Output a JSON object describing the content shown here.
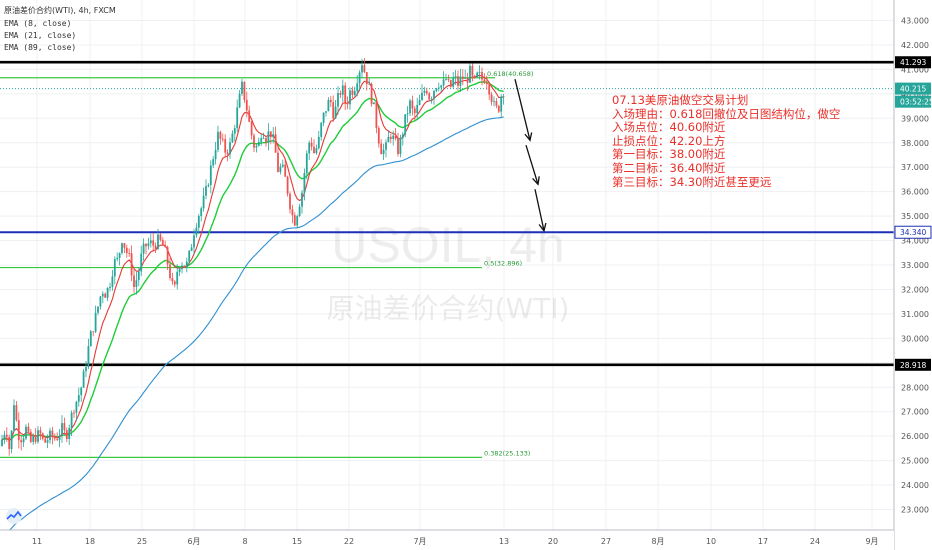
{
  "legend": {
    "symbol_line": "原油差价合约(WTI), 4h, FXCM",
    "ema1": "EMA (8, close)",
    "ema2": "EMA (21, close)",
    "ema3": "EMA (89, close)"
  },
  "watermark": {
    "ticker": "USOIL, 4h",
    "name": "原油差价合约(WTI)"
  },
  "plan": {
    "title": "07.13美原油做空交易计划",
    "reason": "入场理由：0.618回撤位及日图结构位，做空",
    "entry": "入场点位：40.60附近",
    "stop": "止损点位：42.20上方",
    "target1": "第一目标：38.00附近",
    "target2": "第二目标：36.40附近",
    "target3": "第三目标：34.30附近甚至更远"
  },
  "colors": {
    "up": "#26a69a",
    "down": "#ef5350",
    "ema8": "#e53935",
    "ema21": "#1fcc3a",
    "ema89": "#2f8fd0",
    "fib": "#3cc83c",
    "level_black": "#000000",
    "level_blue": "#1c2fb8",
    "plan_text": "#e8302a"
  },
  "chart_data": {
    "type": "candlestick",
    "y_axis": {
      "min": 22.5,
      "max": 43.5,
      "side": "right",
      "ticks": [
        23,
        24,
        25,
        26,
        27,
        28,
        29,
        30,
        31,
        32,
        33,
        34,
        35,
        36,
        37,
        38,
        39,
        40,
        41,
        42,
        43
      ],
      "tick_labels": [
        "23.000",
        "24.000",
        "25.000",
        "26.000",
        "27.000",
        "28.000",
        "29.000",
        "30.000",
        "31.000",
        "32.000",
        "33.000",
        "34.000",
        "35.000",
        "36.000",
        "37.000",
        "38.000",
        "39.000",
        "40.000",
        "41.000",
        "42.000",
        "43.000"
      ]
    },
    "x_axis": {
      "tick_labels": [
        "11",
        "18",
        "25",
        "6月",
        "8",
        "15",
        "22",
        "7月",
        "13",
        "20",
        "27",
        "8月",
        "10",
        "17",
        "24",
        "9月"
      ]
    },
    "price_labels": [
      {
        "text": "41.293",
        "value": 41.293,
        "style": "black"
      },
      {
        "text": "40.215",
        "value": 40.215,
        "style": "teal"
      },
      {
        "text": "03:52:25",
        "value": 39.68,
        "style": "teal"
      },
      {
        "text": "34.340",
        "value": 34.34,
        "style": "blue"
      },
      {
        "text": "28.918",
        "value": 28.918,
        "style": "black"
      }
    ],
    "horizontal_levels": [
      {
        "value": 41.293,
        "kind": "black"
      },
      {
        "value": 34.34,
        "kind": "blue"
      },
      {
        "value": 28.918,
        "kind": "black"
      }
    ],
    "fib_levels": [
      {
        "label": "0.618(40.658)",
        "value": 40.658
      },
      {
        "label": "0.5(32.896)",
        "value": 32.896
      },
      {
        "label": "0.382(25.133)",
        "value": 25.133
      }
    ],
    "current_price": 40.215,
    "price_path_approx": [
      [
        0,
        25.6
      ],
      [
        6,
        26.4
      ],
      [
        10,
        25.3
      ],
      [
        14,
        27.4
      ],
      [
        18,
        26.1
      ],
      [
        22,
        25.9
      ],
      [
        26,
        26.3
      ],
      [
        30,
        25.7
      ],
      [
        36,
        26.0
      ],
      [
        40,
        26.1
      ],
      [
        44,
        25.7
      ],
      [
        50,
        26.0
      ],
      [
        56,
        25.9
      ],
      [
        62,
        26.3
      ],
      [
        66,
        26.0
      ],
      [
        70,
        26.6
      ],
      [
        74,
        27.2
      ],
      [
        78,
        27.6
      ],
      [
        82,
        28.1
      ],
      [
        86,
        29.0
      ],
      [
        90,
        30.0
      ],
      [
        94,
        30.6
      ],
      [
        98,
        31.3
      ],
      [
        102,
        32.0
      ],
      [
        106,
        31.8
      ],
      [
        110,
        32.3
      ],
      [
        114,
        33.1
      ],
      [
        118,
        33.2
      ],
      [
        122,
        34.1
      ],
      [
        126,
        33.6
      ],
      [
        130,
        33.2
      ],
      [
        134,
        32.1
      ],
      [
        138,
        32.6
      ],
      [
        142,
        33.5
      ],
      [
        146,
        33.8
      ],
      [
        150,
        33.9
      ],
      [
        154,
        33.8
      ],
      [
        158,
        34.0
      ],
      [
        162,
        33.9
      ],
      [
        166,
        33.4
      ],
      [
        170,
        32.6
      ],
      [
        174,
        31.8
      ],
      [
        178,
        33.0
      ],
      [
        182,
        33.1
      ],
      [
        186,
        32.9
      ],
      [
        190,
        33.5
      ],
      [
        194,
        34.4
      ],
      [
        198,
        35.0
      ],
      [
        202,
        35.4
      ],
      [
        206,
        36.0
      ],
      [
        210,
        36.8
      ],
      [
        214,
        37.6
      ],
      [
        218,
        38.3
      ],
      [
        222,
        38.0
      ],
      [
        226,
        37.6
      ],
      [
        230,
        37.9
      ],
      [
        234,
        38.6
      ],
      [
        238,
        39.5
      ],
      [
        242,
        40.3
      ],
      [
        246,
        39.6
      ],
      [
        250,
        38.6
      ],
      [
        254,
        37.9
      ],
      [
        258,
        37.8
      ],
      [
        262,
        38.6
      ],
      [
        266,
        38.2
      ],
      [
        270,
        38.5
      ],
      [
        274,
        38.0
      ],
      [
        278,
        36.9
      ],
      [
        282,
        37.0
      ],
      [
        286,
        36.4
      ],
      [
        290,
        35.5
      ],
      [
        294,
        34.7
      ],
      [
        298,
        35.3
      ],
      [
        302,
        36.0
      ],
      [
        306,
        37.3
      ],
      [
        310,
        38.2
      ],
      [
        314,
        37.6
      ],
      [
        318,
        37.9
      ],
      [
        322,
        38.9
      ],
      [
        326,
        39.4
      ],
      [
        330,
        39.8
      ],
      [
        334,
        39.1
      ],
      [
        338,
        39.8
      ],
      [
        342,
        40.3
      ],
      [
        346,
        39.5
      ],
      [
        350,
        40.1
      ],
      [
        354,
        40.2
      ],
      [
        358,
        40.8
      ],
      [
        362,
        41.3
      ],
      [
        366,
        40.7
      ],
      [
        370,
        40.1
      ],
      [
        374,
        39.4
      ],
      [
        378,
        38.3
      ],
      [
        382,
        37.6
      ],
      [
        386,
        37.8
      ],
      [
        390,
        38.4
      ],
      [
        394,
        38.1
      ],
      [
        398,
        37.7
      ],
      [
        402,
        38.3
      ],
      [
        406,
        39.1
      ],
      [
        410,
        39.6
      ],
      [
        414,
        39.1
      ],
      [
        418,
        39.5
      ],
      [
        422,
        39.9
      ],
      [
        426,
        40.3
      ],
      [
        430,
        39.8
      ],
      [
        434,
        40.2
      ],
      [
        438,
        40.5
      ],
      [
        442,
        40.3
      ],
      [
        446,
        40.6
      ],
      [
        450,
        40.2
      ],
      [
        454,
        40.7
      ],
      [
        458,
        40.4
      ],
      [
        462,
        40.7
      ],
      [
        466,
        40.5
      ],
      [
        470,
        40.9
      ],
      [
        474,
        40.4
      ],
      [
        478,
        40.8
      ],
      [
        482,
        40.6
      ],
      [
        486,
        40.7
      ],
      [
        490,
        40.1
      ],
      [
        494,
        39.5
      ],
      [
        498,
        39.3
      ],
      [
        502,
        40.1
      ],
      [
        505,
        40.215
      ]
    ],
    "forecast_path": [
      {
        "from": [
          40.6,
          515
        ],
        "to": [
          38.1,
          530
        ]
      },
      {
        "from": [
          37.9,
          526
        ],
        "to": [
          36.3,
          538
        ]
      },
      {
        "from": [
          36.1,
          535
        ],
        "to": [
          34.4,
          544
        ]
      }
    ]
  }
}
